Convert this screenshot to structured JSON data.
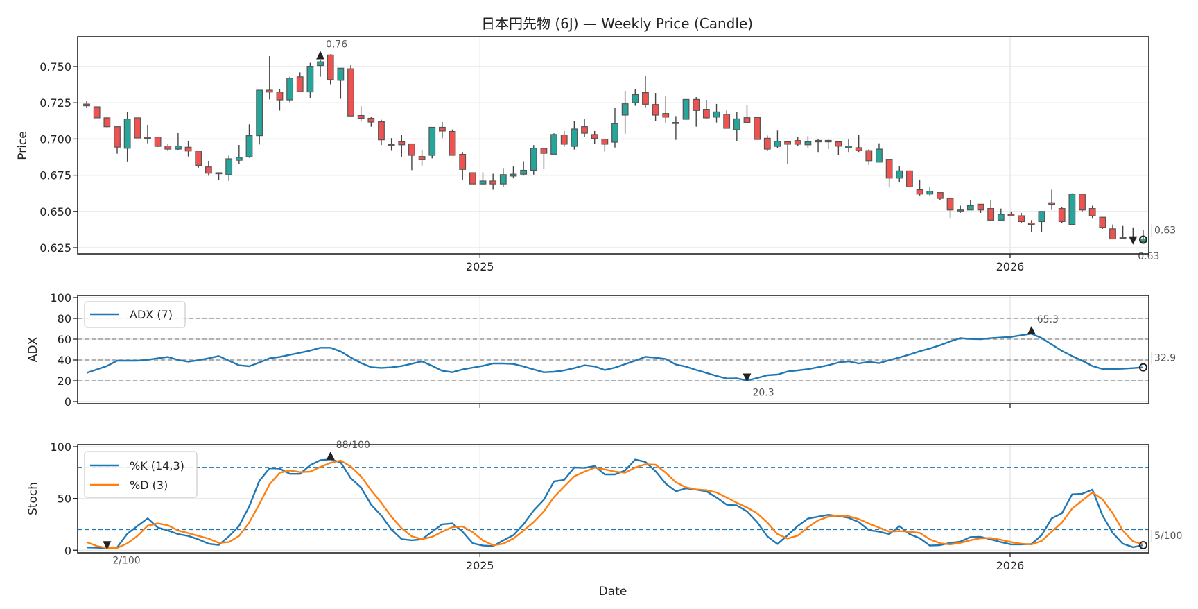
{
  "title": "日本円先物 (6J) — Weekly Price (Candle)",
  "xlabel": "Date",
  "chart_data": [
    {
      "type": "candlestick",
      "panel": "price",
      "ylabel": "Price",
      "ylim": [
        0.6207,
        0.7706
      ],
      "xlim": [
        -0.89,
        104.55
      ],
      "yticks": [
        {
          "v": 0.625,
          "label": "0.625"
        },
        {
          "v": 0.65,
          "label": "0.650"
        },
        {
          "v": 0.675,
          "label": "0.675"
        },
        {
          "v": 0.7,
          "label": "0.700"
        },
        {
          "v": 0.725,
          "label": "0.725"
        },
        {
          "v": 0.75,
          "label": "0.750"
        }
      ],
      "xticks": [
        {
          "x": 38.71,
          "label": "2025"
        },
        {
          "x": 90.9,
          "label": "2026"
        }
      ],
      "colors": {
        "up": "#26a69a",
        "down": "#ef5350",
        "edge": "#555555"
      },
      "candles_ohlc": [
        [
          0.7241,
          0.7261,
          0.7216,
          0.7229
        ],
        [
          0.7222,
          0.7224,
          0.7146,
          0.7146
        ],
        [
          0.7146,
          0.715,
          0.708,
          0.7085
        ],
        [
          0.7085,
          0.7085,
          0.6898,
          0.6944
        ],
        [
          0.6936,
          0.7184,
          0.6845,
          0.7138
        ],
        [
          0.7146,
          0.7146,
          0.7007,
          0.7007
        ],
        [
          0.7011,
          0.7098,
          0.697,
          0.7009
        ],
        [
          0.7013,
          0.7013,
          0.6945,
          0.6949
        ],
        [
          0.6951,
          0.6967,
          0.6919,
          0.693
        ],
        [
          0.693,
          0.704,
          0.6925,
          0.6951
        ],
        [
          0.6943,
          0.6983,
          0.6879,
          0.6917
        ],
        [
          0.6917,
          0.6917,
          0.6802,
          0.6818
        ],
        [
          0.6807,
          0.6849,
          0.6746,
          0.6764
        ],
        [
          0.6765,
          0.677,
          0.6718,
          0.6767
        ],
        [
          0.6753,
          0.6885,
          0.6711,
          0.6863
        ],
        [
          0.6853,
          0.6959,
          0.6826,
          0.6873
        ],
        [
          0.6877,
          0.7101,
          0.687,
          0.7023
        ],
        [
          0.7023,
          0.7337,
          0.6962,
          0.7337
        ],
        [
          0.7337,
          0.7572,
          0.7273,
          0.7324
        ],
        [
          0.7324,
          0.7343,
          0.7196,
          0.727
        ],
        [
          0.727,
          0.7429,
          0.7254,
          0.742
        ],
        [
          0.7429,
          0.746,
          0.7327,
          0.7327
        ],
        [
          0.7325,
          0.7526,
          0.728,
          0.7502
        ],
        [
          0.7507,
          0.7545,
          0.743,
          0.7533
        ],
        [
          0.758,
          0.7585,
          0.7378,
          0.741
        ],
        [
          0.7405,
          0.7489,
          0.7277,
          0.7489
        ],
        [
          0.7485,
          0.751,
          0.7159,
          0.7159
        ],
        [
          0.7162,
          0.7226,
          0.712,
          0.7143
        ],
        [
          0.7143,
          0.7154,
          0.7085,
          0.7117
        ],
        [
          0.7119,
          0.7133,
          0.6958,
          0.6994
        ],
        [
          0.6962,
          0.7006,
          0.6923,
          0.696
        ],
        [
          0.698,
          0.7027,
          0.6878,
          0.696
        ],
        [
          0.6966,
          0.6966,
          0.6785,
          0.6887
        ],
        [
          0.6879,
          0.6926,
          0.6817,
          0.6859
        ],
        [
          0.6887,
          0.7081,
          0.6866,
          0.7081
        ],
        [
          0.7081,
          0.7117,
          0.7006,
          0.7055
        ],
        [
          0.7052,
          0.7066,
          0.6887,
          0.6887
        ],
        [
          0.6894,
          0.691,
          0.6715,
          0.679
        ],
        [
          0.6767,
          0.6767,
          0.669,
          0.669
        ],
        [
          0.669,
          0.677,
          0.668,
          0.671
        ],
        [
          0.671,
          0.676,
          0.665,
          0.669
        ],
        [
          0.669,
          0.68,
          0.667,
          0.6754
        ],
        [
          0.6744,
          0.681,
          0.6728,
          0.6757
        ],
        [
          0.6757,
          0.6847,
          0.6747,
          0.6784
        ],
        [
          0.6784,
          0.6958,
          0.6754,
          0.6936
        ],
        [
          0.6935,
          0.6935,
          0.6794,
          0.6901
        ],
        [
          0.6895,
          0.7039,
          0.6895,
          0.7031
        ],
        [
          0.7028,
          0.7055,
          0.6946,
          0.6964
        ],
        [
          0.6949,
          0.7122,
          0.6927,
          0.7069
        ],
        [
          0.7085,
          0.7136,
          0.7013,
          0.704
        ],
        [
          0.7031,
          0.7055,
          0.6967,
          0.7004
        ],
        [
          0.6999,
          0.6999,
          0.6913,
          0.6964
        ],
        [
          0.6978,
          0.7213,
          0.6941,
          0.7106
        ],
        [
          0.7165,
          0.7333,
          0.7037,
          0.7243
        ],
        [
          0.7251,
          0.7345,
          0.7229,
          0.7306
        ],
        [
          0.732,
          0.7433,
          0.7219,
          0.724
        ],
        [
          0.7238,
          0.7318,
          0.7123,
          0.7165
        ],
        [
          0.7176,
          0.7294,
          0.7109,
          0.7151
        ],
        [
          0.7114,
          0.7158,
          0.6994,
          0.7113
        ],
        [
          0.7136,
          0.7273,
          0.7136,
          0.7273
        ],
        [
          0.7273,
          0.7289,
          0.7085,
          0.7197
        ],
        [
          0.7205,
          0.727,
          0.7139,
          0.7146
        ],
        [
          0.7151,
          0.7242,
          0.7114,
          0.7187
        ],
        [
          0.7171,
          0.7197,
          0.7071,
          0.7074
        ],
        [
          0.7064,
          0.7184,
          0.6986,
          0.7139
        ],
        [
          0.7147,
          0.7232,
          0.7114,
          0.7114
        ],
        [
          0.7149,
          0.7154,
          0.6997,
          0.6997
        ],
        [
          0.7005,
          0.7024,
          0.6919,
          0.693
        ],
        [
          0.6949,
          0.7058,
          0.6938,
          0.6984
        ],
        [
          0.698,
          0.6986,
          0.6826,
          0.6964
        ],
        [
          0.6989,
          0.7015,
          0.6953,
          0.6964
        ],
        [
          0.696,
          0.702,
          0.694,
          0.698
        ],
        [
          0.698,
          0.7,
          0.691,
          0.699
        ],
        [
          0.699,
          0.6995,
          0.693,
          0.698
        ],
        [
          0.698,
          0.6985,
          0.689,
          0.695
        ],
        [
          0.694,
          0.7,
          0.691,
          0.695
        ],
        [
          0.694,
          0.703,
          0.691,
          0.692
        ],
        [
          0.692,
          0.693,
          0.682,
          0.685
        ],
        [
          0.684,
          0.697,
          0.684,
          0.693
        ],
        [
          0.686,
          0.686,
          0.667,
          0.673
        ],
        [
          0.673,
          0.681,
          0.67,
          0.678
        ],
        [
          0.678,
          0.678,
          0.667,
          0.667
        ],
        [
          0.665,
          0.672,
          0.661,
          0.662
        ],
        [
          0.662,
          0.667,
          0.661,
          0.664
        ],
        [
          0.663,
          0.663,
          0.658,
          0.659
        ],
        [
          0.659,
          0.659,
          0.645,
          0.651
        ],
        [
          0.651,
          0.654,
          0.649,
          0.651
        ],
        [
          0.651,
          0.658,
          0.651,
          0.654
        ],
        [
          0.655,
          0.655,
          0.649,
          0.651
        ],
        [
          0.652,
          0.658,
          0.644,
          0.644
        ],
        [
          0.644,
          0.652,
          0.644,
          0.648
        ],
        [
          0.648,
          0.65,
          0.647,
          0.647
        ],
        [
          0.647,
          0.649,
          0.642,
          0.643
        ],
        [
          0.642,
          0.644,
          0.636,
          0.641
        ],
        [
          0.643,
          0.65,
          0.636,
          0.65
        ],
        [
          0.656,
          0.665,
          0.651,
          0.655
        ],
        [
          0.652,
          0.653,
          0.642,
          0.643
        ],
        [
          0.641,
          0.6625,
          0.641,
          0.662
        ],
        [
          0.662,
          0.662,
          0.65,
          0.651
        ],
        [
          0.652,
          0.654,
          0.645,
          0.647
        ],
        [
          0.646,
          0.646,
          0.638,
          0.639
        ],
        [
          0.638,
          0.641,
          0.631,
          0.631
        ],
        [
          0.6318,
          0.64,
          0.631,
          0.6322
        ],
        [
          0.632,
          0.639,
          0.63,
          0.631
        ],
        [
          0.629,
          0.637,
          0.629,
          0.631
        ]
      ],
      "annotations": [
        {
          "kind": "max",
          "index": 23,
          "value": 0.7555,
          "label": "0.76"
        },
        {
          "kind": "min",
          "index": 103,
          "value": 0.628,
          "label": "0.63"
        },
        {
          "kind": "last",
          "index": 104,
          "value": 0.6305,
          "label": "0.63"
        }
      ]
    },
    {
      "type": "line",
      "panel": "adx",
      "ylabel": "ADX",
      "ylim": [
        -2,
        102
      ],
      "xlim": [
        -0.89,
        104.55
      ],
      "yticks": [
        {
          "v": 0,
          "label": "0"
        },
        {
          "v": 20,
          "label": "20"
        },
        {
          "v": 40,
          "label": "40"
        },
        {
          "v": 60,
          "label": "60"
        },
        {
          "v": 80,
          "label": "80"
        },
        {
          "v": 100,
          "label": "100"
        }
      ],
      "reference_lines": [
        20,
        40,
        60,
        80
      ],
      "series": [
        {
          "name": "ADX (7)",
          "color": "#1f77b4",
          "values": [
            27.6,
            30.9,
            34.2,
            39.3,
            39.3,
            39.3,
            40.2,
            41.6,
            42.9,
            40.0,
            38.4,
            39.8,
            41.6,
            43.8,
            39.3,
            34.9,
            34.0,
            37.6,
            41.6,
            42.9,
            44.9,
            46.9,
            49.1,
            51.8,
            51.8,
            48.2,
            42.4,
            37.1,
            33.1,
            32.4,
            32.9,
            34.2,
            36.4,
            38.7,
            34.4,
            29.6,
            28.2,
            30.9,
            32.7,
            34.4,
            36.7,
            36.7,
            36.2,
            33.8,
            30.9,
            28.2,
            28.7,
            30.0,
            32.2,
            34.9,
            33.8,
            30.4,
            32.7,
            36.0,
            39.3,
            43.1,
            42.2,
            40.9,
            35.6,
            33.6,
            30.4,
            27.6,
            24.7,
            22.2,
            22.4,
            20.3,
            22.7,
            25.3,
            26.0,
            28.9,
            30.0,
            31.2,
            33.1,
            34.9,
            37.6,
            38.7,
            36.7,
            38.2,
            36.9,
            39.8,
            42.4,
            45.3,
            48.4,
            51.1,
            54.2,
            57.8,
            61.1,
            60.2,
            60.0,
            60.9,
            61.6,
            62.2,
            63.8,
            65.3,
            61.1,
            54.9,
            48.7,
            43.8,
            39.3,
            34.2,
            31.3,
            31.3,
            31.6,
            32.2,
            32.9
          ]
        }
      ],
      "annotations": [
        {
          "kind": "max",
          "index": 93,
          "value": 65.3,
          "label": "65.3"
        },
        {
          "kind": "min",
          "index": 65,
          "value": 20.3,
          "label": "20.3"
        },
        {
          "kind": "last",
          "index": 104,
          "value": 32.9,
          "label": "32.9"
        }
      ]
    },
    {
      "type": "line",
      "panel": "stoch",
      "ylabel": "Stoch",
      "ylim": [
        -2.5,
        102
      ],
      "xlim": [
        -0.89,
        104.55
      ],
      "yticks": [
        {
          "v": 0,
          "label": "0"
        },
        {
          "v": 50,
          "label": "50"
        },
        {
          "v": 100,
          "label": "100"
        }
      ],
      "xticks": [
        {
          "x": 38.71,
          "label": "2025"
        },
        {
          "x": 90.9,
          "label": "2026"
        }
      ],
      "reference_lines": [
        20,
        80
      ],
      "series": [
        {
          "name": "%K (14,3)",
          "color": "#1f77b4",
          "values": [
            2.7,
            2.5,
            2.0,
            2.7,
            16.0,
            23.4,
            30.8,
            21.9,
            19.0,
            15.6,
            13.8,
            10.5,
            6.3,
            5.1,
            13.4,
            23.4,
            42.4,
            67.0,
            79.2,
            78.8,
            73.7,
            73.7,
            82.1,
            87.0,
            87.7,
            84.8,
            69.6,
            60.7,
            44.0,
            33.5,
            20.0,
            10.7,
            9.6,
            10.5,
            17.9,
            25.0,
            25.9,
            17.9,
            6.7,
            4.5,
            4.0,
            9.4,
            14.5,
            25.0,
            38.4,
            48.7,
            66.5,
            67.9,
            79.9,
            79.5,
            81.3,
            73.2,
            73.2,
            77.0,
            87.5,
            85.3,
            76.3,
            64.3,
            56.9,
            59.8,
            58.5,
            56.9,
            50.9,
            44.0,
            43.3,
            37.5,
            27.2,
            13.4,
            6.0,
            14.5,
            23.4,
            30.6,
            32.4,
            34.2,
            33.0,
            31.3,
            27.2,
            19.4,
            17.9,
            15.6,
            23.2,
            15.6,
            11.6,
            4.5,
            4.9,
            7.1,
            8.3,
            12.7,
            12.9,
            10.5,
            7.8,
            5.6,
            5.6,
            6.0,
            14.5,
            30.8,
            35.7,
            54.0,
            54.5,
            58.5,
            33.5,
            16.7,
            6.3,
            2.9,
            4.9
          ]
        },
        {
          "name": "%D (3)",
          "color": "#ff7f0e",
          "values": [
            7.8,
            4.0,
            2.2,
            2.2,
            6.7,
            13.8,
            23.7,
            25.9,
            24.1,
            19.0,
            16.5,
            13.8,
            11.2,
            7.1,
            7.8,
            13.8,
            26.8,
            44.6,
            63.6,
            74.8,
            77.0,
            75.4,
            75.9,
            80.4,
            84.4,
            86.6,
            80.8,
            71.4,
            58.0,
            45.8,
            32.4,
            21.2,
            13.4,
            10.7,
            12.9,
            17.9,
            22.3,
            23.0,
            17.4,
            9.4,
            4.9,
            6.3,
            11.2,
            19.0,
            27.2,
            37.5,
            51.3,
            61.4,
            71.4,
            75.9,
            79.7,
            78.1,
            75.9,
            74.8,
            79.9,
            83.0,
            82.6,
            74.8,
            65.6,
            60.7,
            58.7,
            58.0,
            55.8,
            50.9,
            45.8,
            41.3,
            35.7,
            26.8,
            15.6,
            11.2,
            14.1,
            22.3,
            28.8,
            32.4,
            33.5,
            32.8,
            30.1,
            25.7,
            21.9,
            17.9,
            18.5,
            17.9,
            16.7,
            10.5,
            6.7,
            5.6,
            7.1,
            9.6,
            11.6,
            11.8,
            10.0,
            7.8,
            6.3,
            5.6,
            8.9,
            17.9,
            26.8,
            40.2,
            48.0,
            55.8,
            49.1,
            35.7,
            19.0,
            8.5,
            5.6
          ]
        }
      ],
      "annotations": [
        {
          "kind": "max",
          "index": 24,
          "value": 88,
          "label": "88/100"
        },
        {
          "kind": "min",
          "index": 2,
          "value": 2,
          "label": "2/100"
        },
        {
          "kind": "last",
          "index": 104,
          "value": 4.9,
          "label": "5/100"
        }
      ]
    }
  ]
}
